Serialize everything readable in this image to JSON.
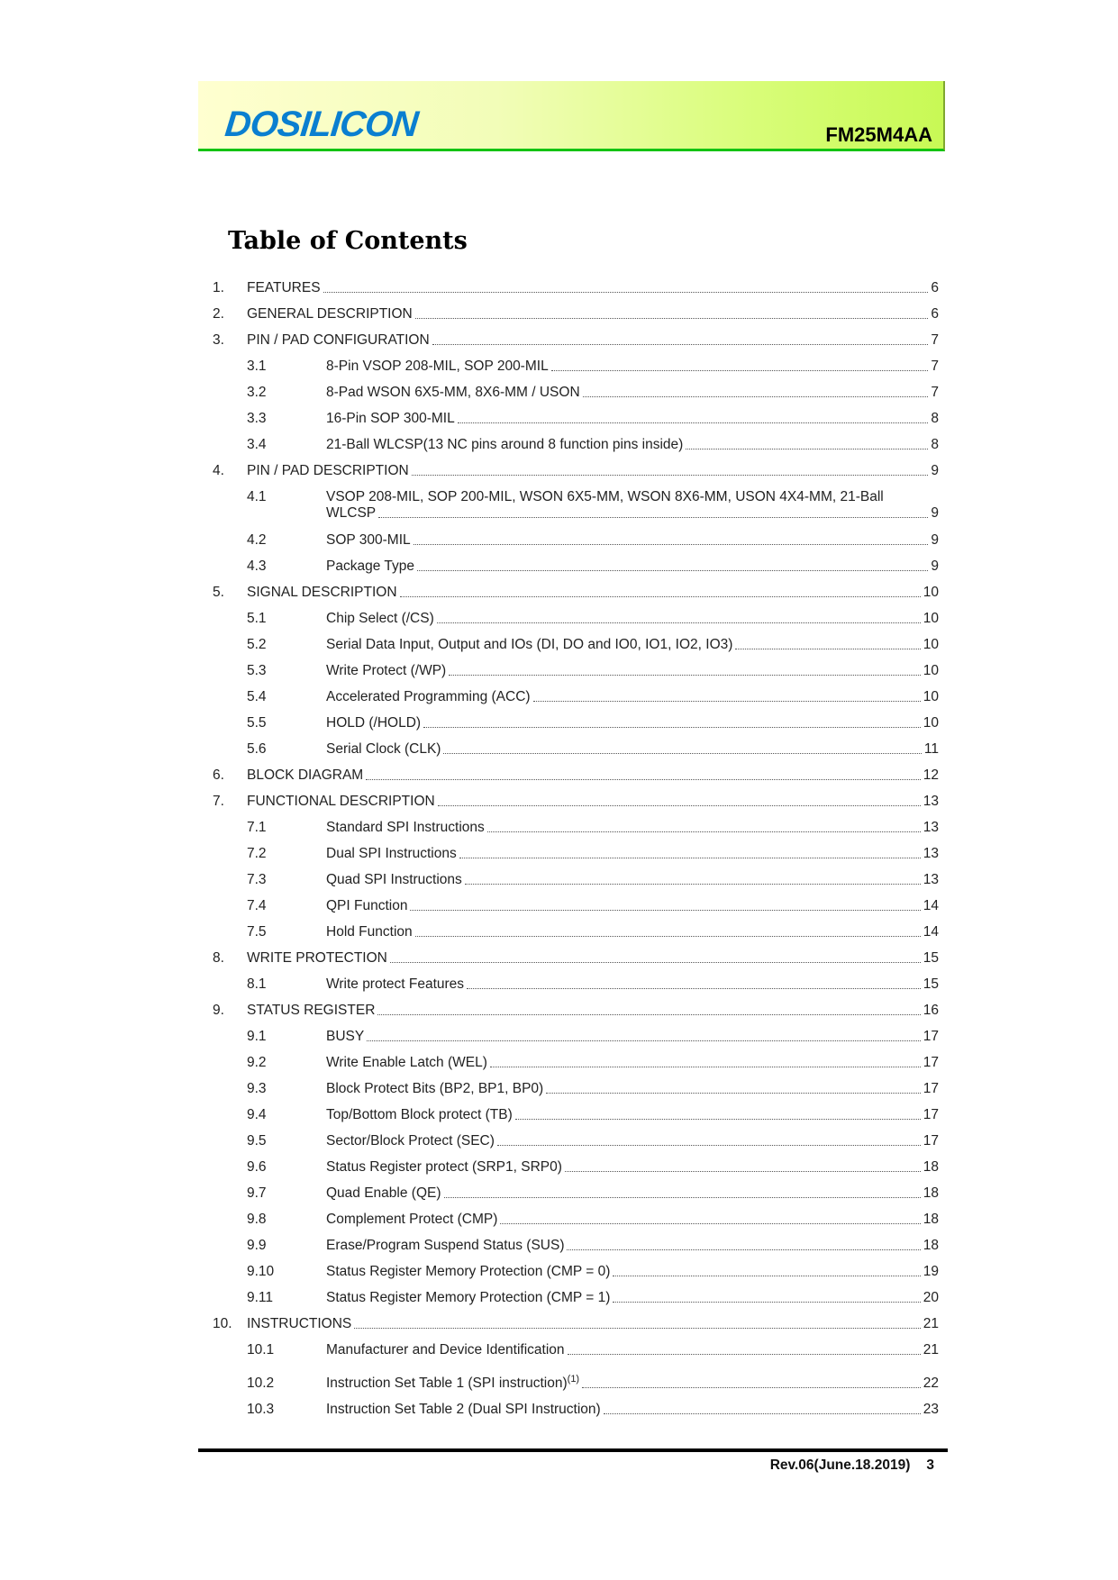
{
  "header": {
    "logo": "DOSILICON",
    "part_number": "FM25M4AA",
    "colors": {
      "logo": "#0a7fd0",
      "rule": "#13c313"
    }
  },
  "title": "Table of Contents",
  "toc": [
    {
      "num": "1.",
      "text": "FEATURES",
      "page": "6",
      "level": 1
    },
    {
      "num": "2.",
      "text": "GENERAL DESCRIPTION",
      "page": "6",
      "level": 1
    },
    {
      "num": "3.",
      "text": "PIN / PAD CONFIGURATION",
      "page": "7",
      "level": 1
    },
    {
      "num": "3.1",
      "text": "8-Pin VSOP 208-MIL, SOP 200-MIL",
      "page": "7",
      "level": 2
    },
    {
      "num": "3.2",
      "text": "8-Pad WSON 6X5-MM, 8X6-MM / USON",
      "page": "7",
      "level": 2
    },
    {
      "num": "3.3",
      "text": "16-Pin SOP 300-MIL",
      "page": "8",
      "level": 2
    },
    {
      "num": "3.4",
      "text": "21-Ball WLCSP(13 NC pins around 8 function pins inside)",
      "page": "8",
      "level": 2
    },
    {
      "num": "4.",
      "text": "PIN / PAD DESCRIPTION",
      "page": "9",
      "level": 1
    },
    {
      "num": "4.1",
      "text": "VSOP 208-MIL, SOP 200-MIL, WSON 6X5-MM, WSON 8X6-MM, USON 4X4-MM, 21-Ball",
      "text2": "WLCSP",
      "page": "9",
      "level": 2
    },
    {
      "num": "4.2",
      "text": "SOP 300-MIL",
      "page": "9",
      "level": 2
    },
    {
      "num": "4.3",
      "text": "Package Type",
      "page": "9",
      "level": 2
    },
    {
      "num": "5.",
      "text": "SIGNAL DESCRIPTION",
      "page": "10",
      "level": 1
    },
    {
      "num": "5.1",
      "text": "Chip Select (/CS)",
      "page": "10",
      "level": 2
    },
    {
      "num": "5.2",
      "text": "Serial Data Input, Output and IOs (DI, DO and IO0, IO1, IO2, IO3)",
      "page": "10",
      "level": 2
    },
    {
      "num": "5.3",
      "text": "Write Protect (/WP)",
      "page": "10",
      "level": 2
    },
    {
      "num": "5.4",
      "text": "Accelerated Programming (ACC)",
      "page": "10",
      "level": 2
    },
    {
      "num": "5.5",
      "text": "HOLD (/HOLD)",
      "page": "10",
      "level": 2
    },
    {
      "num": "5.6",
      "text": "Serial Clock (CLK)",
      "page": "11",
      "level": 2
    },
    {
      "num": "6.",
      "text": "BLOCK DIAGRAM",
      "page": "12",
      "level": 1
    },
    {
      "num": "7.",
      "text": "FUNCTIONAL DESCRIPTION",
      "page": "13",
      "level": 1
    },
    {
      "num": "7.1",
      "text": "Standard SPI Instructions",
      "page": "13",
      "level": 2
    },
    {
      "num": "7.2",
      "text": "Dual SPI Instructions",
      "page": "13",
      "level": 2
    },
    {
      "num": "7.3",
      "text": "Quad SPI Instructions",
      "page": "13",
      "level": 2
    },
    {
      "num": "7.4",
      "text": "QPI Function",
      "page": "14",
      "level": 2
    },
    {
      "num": "7.5",
      "text": "Hold Function",
      "page": "14",
      "level": 2
    },
    {
      "num": "8.",
      "text": "WRITE PROTECTION",
      "page": "15",
      "level": 1
    },
    {
      "num": "8.1",
      "text": "Write protect Features",
      "page": "15",
      "level": 2
    },
    {
      "num": "9.",
      "text": "STATUS REGISTER",
      "page": "16",
      "level": 1
    },
    {
      "num": "9.1",
      "text": "BUSY",
      "page": "17",
      "level": 2
    },
    {
      "num": "9.2",
      "text": "Write Enable Latch (WEL)",
      "page": "17",
      "level": 2
    },
    {
      "num": "9.3",
      "text": "Block Protect Bits (BP2, BP1, BP0)",
      "page": "17",
      "level": 2
    },
    {
      "num": "9.4",
      "text": "Top/Bottom Block protect (TB)",
      "page": "17",
      "level": 2
    },
    {
      "num": "9.5",
      "text": "Sector/Block Protect (SEC)",
      "page": "17",
      "level": 2
    },
    {
      "num": "9.6",
      "text": "Status Register protect (SRP1, SRP0)",
      "page": "18",
      "level": 2
    },
    {
      "num": "9.7",
      "text": "Quad Enable (QE)",
      "page": "18",
      "level": 2
    },
    {
      "num": "9.8",
      "text": "Complement Protect (CMP)",
      "page": "18",
      "level": 2
    },
    {
      "num": "9.9",
      "text": "Erase/Program Suspend Status (SUS)",
      "page": "18",
      "level": 2
    },
    {
      "num": "9.10",
      "text": "Status Register Memory Protection (CMP = 0)",
      "page": "19",
      "level": 2
    },
    {
      "num": "9.11",
      "text": "Status Register Memory Protection (CMP = 1)",
      "page": "20",
      "level": 2
    },
    {
      "num": "10.",
      "text": "INSTRUCTIONS",
      "page": "21",
      "level": 1
    },
    {
      "num": "10.1",
      "text": "Manufacturer and Device Identification",
      "page": "21",
      "level": 2
    },
    {
      "num": "10.2",
      "text": "Instruction Set Table 1 (SPI instruction)",
      "sup": "(1)",
      "page": "22",
      "level": 2
    },
    {
      "num": "10.3",
      "text": "Instruction Set Table 2 (Dual SPI Instruction)",
      "page": "23",
      "level": 2
    }
  ],
  "footer": {
    "revision": "Rev.06(June.18.2019)",
    "page": "3"
  }
}
